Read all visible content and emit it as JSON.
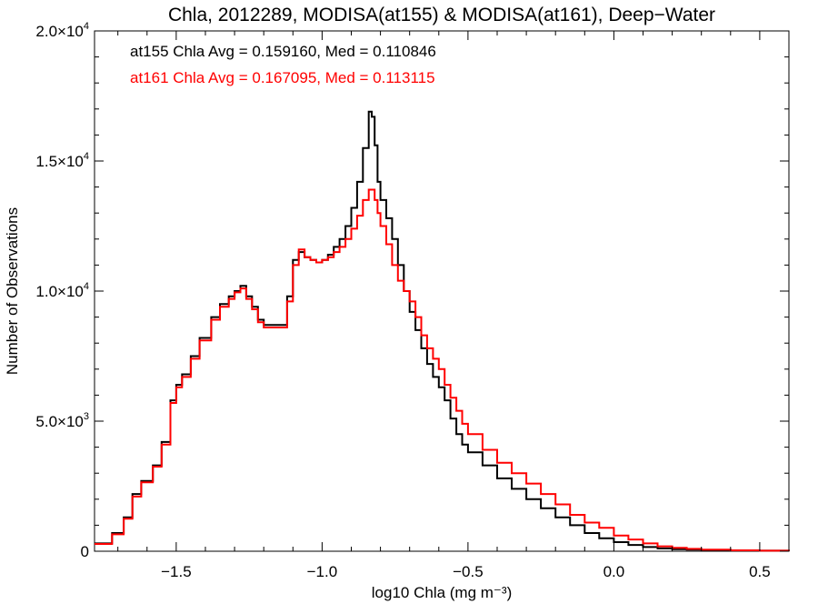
{
  "chart_data": {
    "type": "line",
    "title": "Chla, 2012289, MODISA(at155) & MODISA(at161), Deep−Water",
    "xlabel": "log10 Chla (mg m⁻³)",
    "ylabel": "Number of Observations",
    "xlim": [
      -1.78,
      0.6
    ],
    "ylim": [
      0,
      20000
    ],
    "xticks": [
      -1.5,
      -1.0,
      -0.5,
      0.0,
      0.5
    ],
    "xtick_labels": [
      "−1.5",
      "−1.0",
      "−0.5",
      "0.0",
      "0.5"
    ],
    "yticks": [
      0,
      5000,
      10000,
      15000,
      20000
    ],
    "ytick_labels": [
      {
        "mantissa": "0",
        "exponent": ""
      },
      {
        "mantissa": "5.0×10",
        "exponent": "3"
      },
      {
        "mantissa": "1.0×10",
        "exponent": "4"
      },
      {
        "mantissa": "1.5×10",
        "exponent": "4"
      },
      {
        "mantissa": "2.0×10",
        "exponent": "4"
      }
    ],
    "step": true,
    "grid": false,
    "annotations": [
      {
        "text": "at155 Chla Avg = 0.159160, Med = 0.110846",
        "color": "#000000"
      },
      {
        "text": "at161 Chla Avg = 0.167095, Med = 0.113115",
        "color": "#ff0000"
      }
    ],
    "series": [
      {
        "color": "#000000",
        "x": [
          -1.78,
          -1.72,
          -1.68,
          -1.65,
          -1.62,
          -1.58,
          -1.55,
          -1.52,
          -1.5,
          -1.48,
          -1.45,
          -1.42,
          -1.38,
          -1.35,
          -1.32,
          -1.3,
          -1.28,
          -1.26,
          -1.24,
          -1.22,
          -1.2,
          -1.18,
          -1.16,
          -1.14,
          -1.12,
          -1.1,
          -1.08,
          -1.06,
          -1.04,
          -1.02,
          -1.0,
          -0.98,
          -0.96,
          -0.94,
          -0.92,
          -0.9,
          -0.88,
          -0.86,
          -0.84,
          -0.83,
          -0.82,
          -0.81,
          -0.8,
          -0.78,
          -0.76,
          -0.74,
          -0.72,
          -0.7,
          -0.68,
          -0.66,
          -0.64,
          -0.62,
          -0.6,
          -0.58,
          -0.56,
          -0.54,
          -0.52,
          -0.5,
          -0.45,
          -0.4,
          -0.35,
          -0.3,
          -0.25,
          -0.2,
          -0.15,
          -0.1,
          -0.05,
          0.0,
          0.05,
          0.1,
          0.15,
          0.2,
          0.25,
          0.3,
          0.4,
          0.5,
          0.6
        ],
        "y": [
          300,
          700,
          1300,
          2200,
          2700,
          3300,
          4200,
          5800,
          6400,
          6800,
          7500,
          8200,
          9000,
          9500,
          9800,
          10000,
          10200,
          9800,
          9400,
          8900,
          8700,
          8700,
          8700,
          8700,
          9800,
          11200,
          11500,
          11300,
          11200,
          11100,
          11200,
          11400,
          11700,
          12000,
          12500,
          13200,
          14200,
          15500,
          16900,
          16700,
          15600,
          14200,
          13500,
          12800,
          12000,
          11000,
          10000,
          9200,
          8500,
          7800,
          7200,
          6700,
          6300,
          5800,
          5100,
          4500,
          4100,
          3800,
          3300,
          2800,
          2400,
          2000,
          1650,
          1300,
          1000,
          700,
          500,
          350,
          240,
          160,
          110,
          80,
          60,
          50,
          30,
          20,
          10
        ]
      },
      {
        "color": "#ff0000",
        "x": [
          -1.78,
          -1.72,
          -1.68,
          -1.65,
          -1.62,
          -1.58,
          -1.55,
          -1.52,
          -1.5,
          -1.48,
          -1.45,
          -1.42,
          -1.38,
          -1.35,
          -1.32,
          -1.3,
          -1.28,
          -1.26,
          -1.24,
          -1.22,
          -1.2,
          -1.18,
          -1.16,
          -1.14,
          -1.12,
          -1.1,
          -1.08,
          -1.06,
          -1.04,
          -1.02,
          -1.0,
          -0.98,
          -0.96,
          -0.94,
          -0.92,
          -0.9,
          -0.88,
          -0.86,
          -0.84,
          -0.83,
          -0.82,
          -0.81,
          -0.8,
          -0.78,
          -0.76,
          -0.74,
          -0.72,
          -0.7,
          -0.68,
          -0.66,
          -0.64,
          -0.62,
          -0.6,
          -0.58,
          -0.56,
          -0.54,
          -0.52,
          -0.5,
          -0.45,
          -0.4,
          -0.35,
          -0.3,
          -0.25,
          -0.2,
          -0.15,
          -0.1,
          -0.05,
          0.0,
          0.05,
          0.1,
          0.15,
          0.2,
          0.25,
          0.3,
          0.4,
          0.5,
          0.6
        ],
        "y": [
          280,
          650,
          1250,
          2100,
          2650,
          3250,
          4100,
          5700,
          6300,
          6700,
          7400,
          8100,
          8900,
          9400,
          9700,
          9950,
          10100,
          9700,
          9300,
          8800,
          8600,
          8600,
          8600,
          8600,
          9600,
          11000,
          11600,
          11300,
          11200,
          11100,
          11200,
          11300,
          11500,
          11700,
          12000,
          12400,
          12900,
          13500,
          13900,
          13900,
          13500,
          13000,
          12500,
          11800,
          11000,
          10400,
          10000,
          9600,
          9000,
          8300,
          7800,
          7400,
          7000,
          6400,
          5900,
          5400,
          4900,
          4500,
          3900,
          3400,
          3000,
          2600,
          2200,
          1800,
          1400,
          1100,
          900,
          600,
          450,
          300,
          190,
          130,
          90,
          60,
          35,
          20,
          10
        ]
      }
    ]
  }
}
